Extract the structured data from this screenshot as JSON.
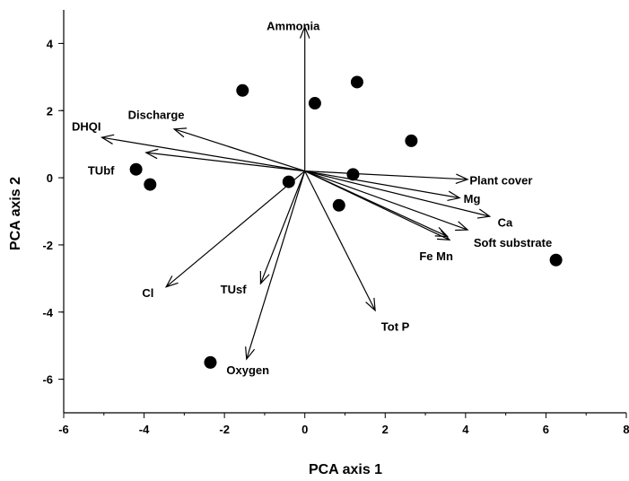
{
  "chart_data": {
    "type": "scatter",
    "title": "",
    "xlabel": "PCA axis 1",
    "ylabel": "PCA axis 2",
    "xlim": [
      -6,
      8
    ],
    "ylim": [
      -7,
      5
    ],
    "xticks": [
      -6,
      -4,
      -2,
      0,
      2,
      4,
      6,
      8
    ],
    "yticks": [
      -6,
      -4,
      -2,
      0,
      2,
      4
    ],
    "grid": false,
    "legend": "none",
    "origin": [
      0,
      0.2
    ],
    "points": [
      {
        "x": -4.2,
        "y": 0.25
      },
      {
        "x": -3.85,
        "y": -0.2
      },
      {
        "x": -1.55,
        "y": 2.6
      },
      {
        "x": -0.4,
        "y": -0.12
      },
      {
        "x": 0.25,
        "y": 2.22
      },
      {
        "x": 1.3,
        "y": 2.85
      },
      {
        "x": 1.2,
        "y": 0.1
      },
      {
        "x": 0.85,
        "y": -0.82
      },
      {
        "x": 2.65,
        "y": 1.1
      },
      {
        "x": 6.25,
        "y": -2.45
      },
      {
        "x": -2.35,
        "y": -5.5
      }
    ],
    "vectors": [
      {
        "label": "Ammonia",
        "x": 0.0,
        "y": 4.5
      },
      {
        "label": "Discharge",
        "x": -3.25,
        "y": 1.45
      },
      {
        "label": "DHQI",
        "x": -5.05,
        "y": 1.2
      },
      {
        "label": "TUbf",
        "x": -3.95,
        "y": 0.75
      },
      {
        "label": "Plant cover",
        "x": 4.05,
        "y": -0.05
      },
      {
        "label": "Mg",
        "x": 3.85,
        "y": -0.6
      },
      {
        "label": "Ca",
        "x": 4.6,
        "y": -1.15
      },
      {
        "label": "Soft substrate",
        "x": 4.05,
        "y": -1.55
      },
      {
        "label": "Fe",
        "x": 3.55,
        "y": -1.75
      },
      {
        "label": "Mn",
        "x": 3.6,
        "y": -1.85
      },
      {
        "label": "Tot P",
        "x": 1.75,
        "y": -3.95
      },
      {
        "label": "TUsf",
        "x": -1.1,
        "y": -3.15
      },
      {
        "label": "Cl",
        "x": -3.45,
        "y": -3.25
      },
      {
        "label": "Oxygen",
        "x": -1.45,
        "y": -5.4
      }
    ],
    "vector_labels": [
      {
        "text": "Ammonia",
        "x": -0.95,
        "y": 4.4
      },
      {
        "text": "Discharge",
        "x": -4.4,
        "y": 1.75
      },
      {
        "text": "DHQI",
        "x": -5.8,
        "y": 1.4
      },
      {
        "text": "TUbf",
        "x": -5.4,
        "y": 0.1
      },
      {
        "text": "Plant cover",
        "x": 4.1,
        "y": -0.2
      },
      {
        "text": "Mg",
        "x": 3.95,
        "y": -0.75
      },
      {
        "text": "Ca",
        "x": 4.8,
        "y": -1.45
      },
      {
        "text": "Soft substrate",
        "x": 4.2,
        "y": -2.05
      },
      {
        "text": "Fe  Mn",
        "x": 2.85,
        "y": -2.45
      },
      {
        "text": "Tot P",
        "x": 1.9,
        "y": -4.55
      },
      {
        "text": "TUsf",
        "x": -2.1,
        "y": -3.45
      },
      {
        "text": "Cl",
        "x": -4.05,
        "y": -3.55
      },
      {
        "text": "Oxygen",
        "x": -1.95,
        "y": -5.85
      }
    ]
  }
}
